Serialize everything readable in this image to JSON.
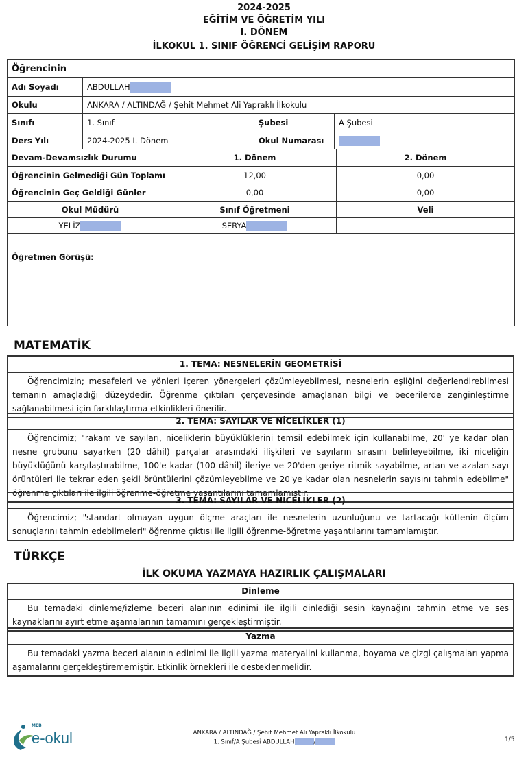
{
  "header": {
    "year": "2024-2025",
    "line2": "EĞİTİM VE ÖĞRETİM YILI",
    "term": "I. DÖNEM",
    "title": "İLKOKUL 1. SINIF ÖĞRENCİ GELİŞİM RAPORU"
  },
  "student": {
    "section_label": "Öğrencinin",
    "name_label": "Adı Soyadı",
    "name_value": "ABDULLAH",
    "school_label": "Okulu",
    "school_value": "ANKARA / ALTINDAĞ / Şehit Mehmet Ali Yapraklı İlkokulu",
    "class_label": "Sınıfı",
    "class_value": "1. Sınıf",
    "branch_label": "Şubesi",
    "branch_value": "A Şubesi",
    "year_label": "Ders Yılı",
    "year_value": "2024-2025 I. Dönem",
    "number_label": "Okul Numarası"
  },
  "attendance": {
    "header": "Devam-Devamsızlık Durumu",
    "term1": "1. Dönem",
    "term2": "2. Dönem",
    "rows": [
      {
        "label": "Öğrencinin Gelmediği Gün Toplamı",
        "t1": "12,00",
        "t2": "0,00"
      },
      {
        "label": "Öğrencinin Geç Geldiği Günler",
        "t1": "0,00",
        "t2": "0,00"
      }
    ]
  },
  "signatures": {
    "principal_label": "Okul Müdürü",
    "teacher_label": "Sınıf Öğretmeni",
    "parent_label": "Veli",
    "principal_name": "YELİZ",
    "teacher_name": "SERYA"
  },
  "teacher_opinion_label": "Öğretmen Görüşü:",
  "math": {
    "title": "MATEMATİK",
    "themes": [
      {
        "title": "1. TEMA: NESNELERİN GEOMETRİSİ",
        "text": "Öğrencimizin; mesafeleri ve yönleri içeren yönergeleri çözümleyebilmesi, nesnelerin eşliğini değerlendirebilmesi temanın amaçladığı düzeydedir. Öğrenme çıktıları çerçevesinde amaçlanan bilgi ve becerilerde zenginleştirme sağlanabilmesi için farklılaştırma etkinlikleri önerilir."
      },
      {
        "title": "2. TEMA: SAYILAR VE NİCELİKLER (1)",
        "text": "Öğrencimiz; \"rakam ve sayıları, niceliklerin büyüklüklerini temsil edebilmek için kullanabilme, 20' ye kadar olan nesne grubunu sayarken (20 dâhil) parçalar arasındaki ilişkileri ve sayıların sırasını belirleyebilme, iki niceliğin büyüklüğünü karşılaştırabilme, 100'e kadar (100 dâhil) ileriye ve 20'den geriye ritmik sayabilme, artan ve azalan sayı örüntüleri ile tekrar eden şekil örüntülerini çözümleyebilme ve 20'ye kadar olan nesnelerin sayısını tahmin edebilme\" öğrenme çıktıları ile ilgili öğrenme-öğretme yaşantılarını tamamlamıştır."
      },
      {
        "title": "3. TEMA: SAYILAR VE NİCELİKLER (2)",
        "text": "Öğrencimiz; \"standart olmayan uygun ölçme araçları ile nesnelerin uzunluğunu ve tartacağı kütlenin ölçüm sonuçlarını tahmin edebilmeleri\" öğrenme çıktısı ile ilgili öğrenme-öğretme yaşantılarını tamamlamıştır."
      }
    ]
  },
  "turkish": {
    "title": "TÜRKÇE",
    "subtitle": "İLK OKUMA YAZMAYA HAZIRLIK ÇALIŞMALARI",
    "themes": [
      {
        "title": "Dinleme",
        "text": "Bu temadaki dinleme/izleme beceri alanının edinimi ile ilgili dinlediği sesin kaynağını tahmin etme ve ses kaynaklarını ayırt etme aşamalarının tamamını gerçekleştirmiştir."
      },
      {
        "title": "Yazma",
        "text": "Bu temadaki yazma beceri alanının edinimi ile ilgili yazma materyalini kullanma, boyama ve çizgi çalışmaları yapma aşamalarını gerçekleştirememiştir. Etkinlik örnekleri ile desteklenmelidir."
      }
    ]
  },
  "footer": {
    "logo_text": "e-okul",
    "logo_small": "MEB",
    "school": "ANKARA / ALTINDAĞ / Şehit Mehmet Ali Yapraklı İlkokulu",
    "student_line": "1. Sınıf/A Şubesi ABDULLAH",
    "separator": "/",
    "page": "1/5"
  },
  "colors": {
    "redaction": "#9db3e3",
    "border": "#333333"
  }
}
